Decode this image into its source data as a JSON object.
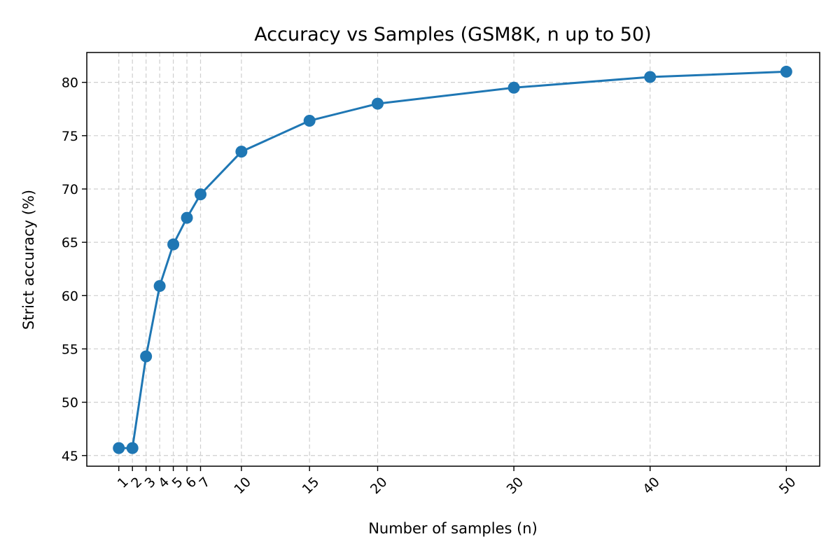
{
  "chart_data": {
    "type": "line",
    "title": "Accuracy vs Samples (GSM8K, n up to 50)",
    "xlabel": "Number of samples (n)",
    "ylabel": "Strict accuracy (%)",
    "x": [
      1,
      2,
      3,
      4,
      5,
      6,
      7,
      10,
      15,
      20,
      30,
      40,
      50
    ],
    "xticks": [
      1,
      2,
      3,
      4,
      5,
      6,
      7,
      10,
      15,
      20,
      30,
      40,
      50
    ],
    "xlim": [
      -1.35,
      52.45
    ],
    "ylim": [
      44.0,
      82.8
    ],
    "yticks": [
      45,
      50,
      55,
      60,
      65,
      70,
      75,
      80
    ],
    "grid": true,
    "series": [
      {
        "values": [
          45.7,
          45.7,
          54.3,
          60.9,
          64.8,
          67.3,
          69.5,
          73.5,
          76.4,
          78.0,
          79.5,
          80.5,
          81.0
        ],
        "color": "#1f77b4",
        "marker": "circle"
      }
    ]
  }
}
